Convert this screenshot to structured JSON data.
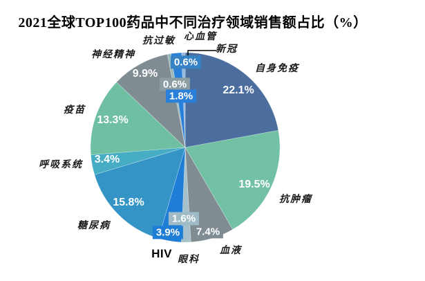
{
  "page": {
    "background": "#ffffff"
  },
  "title": "2021全球TOP100药品中不同治疗领域销售额占比（%）",
  "chart_data": {
    "type": "pie",
    "title": "2021全球TOP100药品中不同治疗领域销售额占比（%）",
    "value_unit": "%",
    "start_angle_deg": 0,
    "direction": "clockwise",
    "slices": [
      {
        "id": "autoimmune",
        "label": "自身免疫",
        "value": 22.1,
        "color": "#4c6e9f"
      },
      {
        "id": "oncology",
        "label": "抗肿瘤",
        "value": 19.5,
        "color": "#72c1a4"
      },
      {
        "id": "blood",
        "label": "血液",
        "value": 7.4,
        "color": "#7f8d93",
        "pct_box_color": "#7f8d93"
      },
      {
        "id": "ophthalmology",
        "label": "眼科",
        "value": 1.6,
        "color": "#a6c0ca",
        "pct_box_color": "#9fbbc6"
      },
      {
        "id": "hiv",
        "label": "HIV",
        "value": 3.9,
        "color": "#1e7ed6",
        "pct_box_color": "#1e7ed6"
      },
      {
        "id": "diabetes",
        "label": "糖尿病",
        "value": 15.8,
        "color": "#3494c6"
      },
      {
        "id": "respiratory",
        "label": "呼吸系统",
        "value": 3.4,
        "color": "#46adc4"
      },
      {
        "id": "vaccine",
        "label": "疫苗",
        "value": 13.3,
        "color": "#6fbfa2"
      },
      {
        "id": "neuropsych",
        "label": "神经精神",
        "value": 9.9,
        "color": "#7f8d93"
      },
      {
        "id": "antiallergy",
        "label": "抗过敏",
        "value": 0.6,
        "color": "#9bb9bd",
        "pct_box_color": "#8d9ea3"
      },
      {
        "id": "cardiovascular",
        "label": "心血管",
        "value": 1.8,
        "color": "#2a80d9",
        "pct_box_color": "#2a80d9"
      },
      {
        "id": "covid",
        "label": "新冠",
        "value": 0.6,
        "color": "#95b8dc",
        "pct_box_color": "#3583c5"
      }
    ],
    "callout": {
      "for": "covid",
      "line_color": "#000000"
    }
  }
}
